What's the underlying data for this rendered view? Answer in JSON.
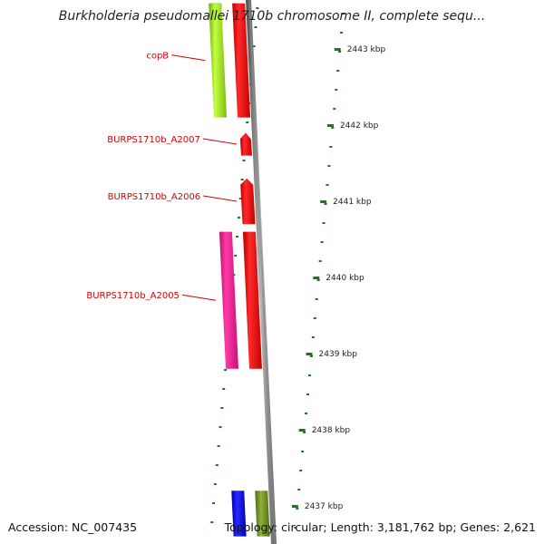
{
  "title": "Burkholderia pseudomallei 1710b chromosome II, complete sequ...",
  "footer": {
    "accession": "Accession: NC_007435",
    "topology": "Topology: circular; Length: 3,181,762 bp; Genes: 2,621"
  },
  "colors": {
    "backbone": "#8a8a8a",
    "gene_red": "#ff0000",
    "gene_pink": "#ff1493",
    "gene_green": "#99e61a",
    "gene_olive": "#6b8e23",
    "gene_blue": "#0000ee",
    "gene_navy": "#000080",
    "ticks": "#1a7a1a",
    "labels": "#d40000"
  },
  "chart_data": {
    "type": "circular-genome-map",
    "visible_range_kbp": [
      2436.6,
      2443.6
    ],
    "ruler": {
      "ticks_kbp": [
        2437,
        2438,
        2439,
        2440,
        2441,
        2442,
        2443
      ],
      "tick_labels": [
        "2437 kbp",
        "2438 kbp",
        "2439 kbp",
        "2440 kbp",
        "2441 kbp",
        "2442 kbp",
        "2443 kbp"
      ]
    },
    "labeled_genes": [
      {
        "label": "copB",
        "start_kbp": 2442.1,
        "end_kbp": 2443.6,
        "strand": "+",
        "color": "#99e61a"
      },
      {
        "label": "BURPS1710b_A2007",
        "start_kbp": 2441.6,
        "end_kbp": 2441.9,
        "strand": "+",
        "color": "#ff0000"
      },
      {
        "label": "BURPS1710b_A2006",
        "start_kbp": 2440.7,
        "end_kbp": 2441.3,
        "strand": "+",
        "color": "#ff0000"
      },
      {
        "label": "BURPS1710b_A2005",
        "start_kbp": 2438.8,
        "end_kbp": 2440.6,
        "strand": "+",
        "color": "#ff1493"
      }
    ],
    "other_features": [
      {
        "start_kbp": 2442.1,
        "end_kbp": 2443.6,
        "lane": 1,
        "color": "#ff0000"
      },
      {
        "start_kbp": 2438.8,
        "end_kbp": 2440.6,
        "lane": 1,
        "color": "#ff0000"
      },
      {
        "start_kbp": 2443.5,
        "end_kbp": 2443.6,
        "lane": 0,
        "color": "#000080"
      },
      {
        "start_kbp": 2436.6,
        "end_kbp": 2437.2,
        "lane": 0,
        "color": "#0000ee"
      },
      {
        "start_kbp": 2436.6,
        "end_kbp": 2437.2,
        "lane": 1,
        "color": "#6b8e23"
      }
    ]
  }
}
